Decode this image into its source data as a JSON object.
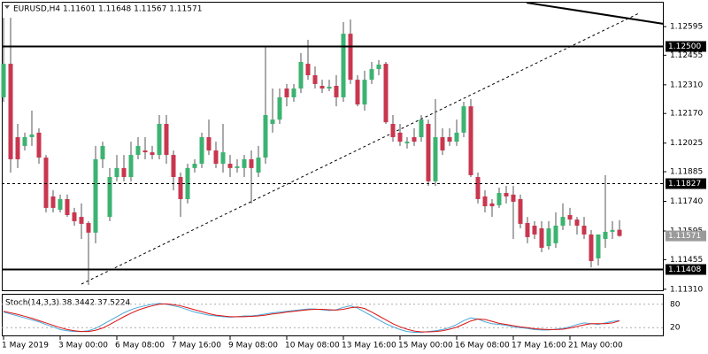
{
  "chart_data": [
    {
      "type": "candlestick",
      "title": "EURUSD,H4 1.11601 1.11648 1.11567 1.11571",
      "categories": [
        "1 May 2019",
        null,
        null,
        null,
        null,
        null,
        null,
        null,
        "3 May 00:00",
        null,
        null,
        null,
        null,
        null,
        null,
        null,
        "6 May 08:00",
        null,
        null,
        null,
        null,
        null,
        null,
        null,
        "7 May 16:00",
        null,
        null,
        null,
        null,
        null,
        null,
        null,
        "9 May 08:00",
        null,
        null,
        null,
        null,
        null,
        null,
        null,
        "10 May 08:00",
        null,
        null,
        null,
        null,
        null,
        null,
        null,
        "13 May 16:00",
        null,
        null,
        null,
        null,
        null,
        null,
        null,
        "15 May 00:00",
        null,
        null,
        null,
        null,
        null,
        null,
        null,
        "16 May 08:00",
        null,
        null,
        null,
        null,
        null,
        null,
        null,
        "17 May 16:00",
        null,
        null,
        null,
        null,
        null,
        null,
        null,
        "21 May 00:00",
        null,
        null,
        null,
        null,
        null,
        null,
        null
      ],
      "open": [
        1.12249,
        1.12413,
        1.12054,
        1.12011,
        1.12054,
        1.12076,
        1.11954,
        1.11764,
        1.11699,
        1.11751,
        1.11686,
        1.11664,
        1.11634,
        1.11587,
        1.11946,
        1.11664,
        1.11859,
        1.11903,
        1.11859,
        1.11967,
        1.11989,
        1.1198,
        1.11967,
        1.12119,
        1.11967,
        1.11859,
        1.11751,
        1.11903,
        1.11924,
        1.12054,
        1.11989,
        1.11924,
        1.11924,
        1.11903,
        1.11903,
        1.11946,
        1.11881,
        1.11954,
        1.12119,
        1.1214,
        1.12292,
        1.12249,
        1.12292,
        1.12413,
        1.12357,
        1.12305,
        1.12292,
        1.12305,
        1.12249,
        1.1256,
        1.12335,
        1.12214,
        1.12335,
        1.12387,
        1.12413,
        1.12119,
        1.12076,
        1.12024,
        1.12054,
        1.12054,
        1.12119,
        1.11838,
        1.12054,
        1.12054,
        1.12032,
        1.12076,
        1.12205,
        1.11859,
        1.11764,
        1.1173,
        1.11721,
        1.11781,
        1.11773,
        1.11751,
        1.11634,
        1.11621,
        1.11608,
        1.11521,
        1.11535,
        1.11621,
        1.11673,
        1.11651,
        1.11621,
        1.11578,
        1.11461,
        1.11556,
        1.11591,
        1.11601
      ],
      "high": [
        1.12638,
        1.12638,
        1.12119,
        1.12076,
        1.12184,
        1.12097,
        1.11967,
        1.11794,
        1.11773,
        1.11773,
        1.11708,
        1.1173,
        1.11643,
        1.12011,
        1.12032,
        1.11903,
        1.11967,
        1.11967,
        1.12032,
        1.12054,
        1.12054,
        1.12011,
        1.12162,
        1.12162,
        1.11989,
        1.11881,
        1.11924,
        1.11946,
        1.12076,
        1.1214,
        1.12032,
        1.12119,
        1.11967,
        1.11946,
        1.11967,
        1.11989,
        1.12011,
        1.125,
        1.12292,
        1.12292,
        1.12314,
        1.12314,
        1.12465,
        1.1253,
        1.124,
        1.12335,
        1.12335,
        1.12357,
        1.12617,
        1.1263,
        1.12357,
        1.12379,
        1.12422,
        1.12431,
        1.12422,
        1.12162,
        1.12119,
        1.12054,
        1.12097,
        1.12162,
        1.1214,
        1.1224,
        1.12097,
        1.12097,
        1.1214,
        1.12227,
        1.1224,
        1.11881,
        1.11794,
        1.11751,
        1.11807,
        1.11816,
        1.11816,
        1.11773,
        1.11664,
        1.11643,
        1.11643,
        1.11643,
        1.11686,
        1.1173,
        1.11708,
        1.11664,
        1.11664,
        1.116,
        1.11578,
        1.11868,
        1.11643,
        1.11648
      ],
      "low": [
        1.12227,
        1.11881,
        1.11903,
        1.11989,
        1.12011,
        1.11924,
        1.11686,
        1.11686,
        1.11686,
        1.11664,
        1.11621,
        1.11556,
        1.11331,
        1.11535,
        1.11903,
        1.11643,
        1.11838,
        1.11838,
        1.11838,
        1.11946,
        1.11946,
        1.11946,
        1.11946,
        1.11924,
        1.11794,
        1.11664,
        1.1173,
        1.11881,
        1.11903,
        1.11967,
        1.11903,
        1.11881,
        1.11859,
        1.11881,
        1.11859,
        1.1173,
        1.11859,
        1.11924,
        1.12076,
        1.12119,
        1.12205,
        1.12227,
        1.1227,
        1.12335,
        1.12292,
        1.1227,
        1.12279,
        1.12205,
        1.12227,
        1.12314,
        1.12205,
        1.12184,
        1.12314,
        1.12357,
        1.12119,
        1.12032,
        1.12011,
        1.11998,
        1.12011,
        1.12032,
        1.11816,
        1.11816,
        1.11967,
        1.12011,
        1.12011,
        1.12054,
        1.11859,
        1.1173,
        1.11686,
        1.11664,
        1.11708,
        1.1173,
        1.11556,
        1.11608,
        1.11535,
        1.11556,
        1.11491,
        1.11504,
        1.11513,
        1.116,
        1.11621,
        1.11578,
        1.11556,
        1.11417,
        1.11426,
        1.11513,
        1.11556,
        1.11567
      ],
      "close": [
        1.12413,
        1.11946,
        1.11946,
        1.12054,
        1.12067,
        1.11954,
        1.11708,
        1.11708,
        1.11751,
        1.11673,
        1.11643,
        1.1163,
        1.11587,
        1.11946,
        1.12011,
        1.11859,
        1.11903,
        1.11859,
        1.11967,
        1.12011,
        1.1198,
        1.11967,
        1.12119,
        1.11967,
        1.11859,
        1.11751,
        1.11903,
        1.11924,
        1.12054,
        1.11989,
        1.11924,
        1.1198,
        1.11903,
        1.11911,
        1.11946,
        1.11903,
        1.11954,
        1.12162,
        1.1214,
        1.12249,
        1.12249,
        1.12292,
        1.12422,
        1.12357,
        1.12314,
        1.12292,
        1.12301,
        1.12249,
        1.1256,
        1.12335,
        1.12214,
        1.12335,
        1.12387,
        1.12409,
        1.12127,
        1.12054,
        1.12032,
        1.12032,
        1.12032,
        1.1214,
        1.11838,
        1.12054,
        1.11989,
        1.12032,
        1.12076,
        1.12205,
        1.11868,
        1.11751,
        1.11716,
        1.11716,
        1.11781,
        1.11764,
        1.11738,
        1.1163,
        1.11565,
        1.11578,
        1.11513,
        1.11608,
        1.11621,
        1.11664,
        1.11651,
        1.11621,
        1.11578,
        1.11448,
        1.11578,
        1.11591,
        1.116,
        1.11571
      ],
      "ylim": [
        1.11305,
        1.12725
      ],
      "yticks": [
        1.12595,
        1.12455,
        {
          "value": 1.1231,
          "label": "1.12310"
        },
        {
          "value": 1.1217,
          "label": "1.12170"
        },
        1.12025,
        1.11885,
        {
          "value": 1.1174,
          "label": "1.11740"
        },
        1.11595,
        1.11455,
        {
          "value": 1.1131,
          "label": "1.11310"
        }
      ],
      "levels": [
        {
          "value": 1.125,
          "label": "1.12500",
          "style": "solid"
        },
        {
          "value": 1.11827,
          "style": "dashed"
        },
        {
          "value": 1.11408,
          "style": "solid"
        }
      ],
      "current_price": 1.11571,
      "up_color": "#3cb371",
      "down_color": "#c8374f",
      "wick_color": "#555555"
    },
    {
      "type": "line",
      "title": "Stoch(14,3,3) 38.3442 37.5224",
      "ylim": [
        0,
        100
      ],
      "yticks": [
        20,
        80
      ],
      "series": [
        {
          "color": "#4aa8d8",
          "values": [
            60,
            55,
            50,
            45,
            40,
            35,
            28,
            22,
            15,
            12,
            10,
            10,
            12,
            18,
            28,
            38,
            48,
            58,
            66,
            72,
            76,
            80,
            82,
            80,
            76,
            72,
            66,
            60,
            56,
            52,
            50,
            48,
            47,
            48,
            50,
            50,
            52,
            55,
            58,
            60,
            62,
            64,
            66,
            68,
            68,
            66,
            64,
            66,
            72,
            76,
            70,
            60,
            50,
            40,
            30,
            22,
            15,
            10,
            8,
            8,
            10,
            12,
            15,
            20,
            28,
            38,
            45,
            42,
            35,
            30,
            28,
            26,
            22,
            20,
            18,
            15,
            14,
            14,
            16,
            18,
            22,
            28,
            32,
            30,
            28,
            32,
            36,
            38.3442
          ]
        },
        {
          "color": "#dd1111",
          "values": [
            62,
            58,
            54,
            49,
            44,
            38,
            32,
            26,
            20,
            15,
            12,
            10,
            10,
            13,
            19,
            28,
            38,
            48,
            57,
            65,
            71,
            76,
            80,
            81,
            79,
            76,
            71,
            66,
            61,
            56,
            52,
            50,
            48,
            48,
            48,
            49,
            50,
            52,
            55,
            57,
            60,
            62,
            64,
            66,
            67,
            67,
            66,
            65,
            67,
            71,
            73,
            69,
            60,
            50,
            40,
            30,
            22,
            16,
            11,
            9,
            9,
            10,
            12,
            16,
            21,
            29,
            37,
            42,
            41,
            36,
            31,
            28,
            25,
            22,
            20,
            17,
            16,
            15,
            15,
            16,
            19,
            23,
            27,
            30,
            30,
            30,
            32,
            37.5224
          ]
        }
      ]
    }
  ]
}
